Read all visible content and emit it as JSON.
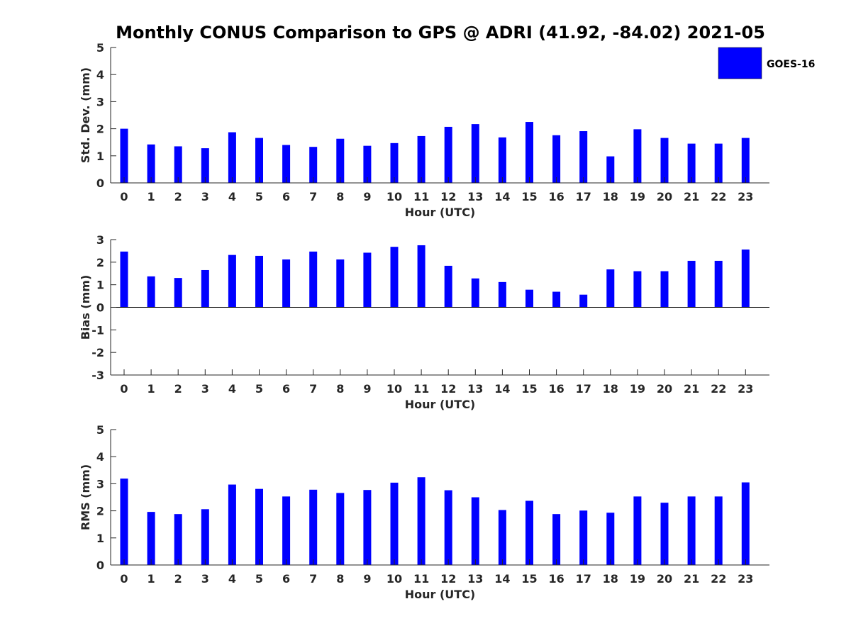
{
  "chart_data": {
    "type": "bar",
    "title": "Monthly CONUS Comparison to GPS @ ADRI (41.92, -84.02) 2021-05",
    "legend": {
      "label": "GOES-16",
      "color": "#0000ff",
      "placement": "top-right"
    },
    "categories": [
      "0",
      "1",
      "2",
      "3",
      "4",
      "5",
      "6",
      "7",
      "8",
      "9",
      "10",
      "11",
      "12",
      "13",
      "14",
      "15",
      "16",
      "17",
      "18",
      "19",
      "20",
      "21",
      "22",
      "23"
    ],
    "panels": [
      {
        "name": "std-dev",
        "ylabel": "Std. Dev. (mm)",
        "xlabel": "Hour (UTC)",
        "ylim": [
          0,
          5
        ],
        "yticks": [
          "0",
          "1",
          "2",
          "3",
          "4",
          "5"
        ],
        "series": [
          {
            "name": "GOES-16",
            "values": [
              2.0,
              1.42,
              1.35,
              1.28,
              1.87,
              1.66,
              1.4,
              1.33,
              1.63,
              1.37,
              1.47,
              1.73,
              2.07,
              2.17,
              1.68,
              2.25,
              1.76,
              1.91,
              0.98,
              1.98,
              1.66,
              1.45,
              1.45,
              1.66
            ]
          }
        ]
      },
      {
        "name": "bias",
        "ylabel": "Bias (mm)",
        "xlabel": "Hour (UTC)",
        "ylim": [
          -3,
          3
        ],
        "yticks": [
          "-3",
          "-2",
          "-1",
          "0",
          "1",
          "2",
          "3"
        ],
        "series": [
          {
            "name": "GOES-16",
            "values": [
              2.47,
              1.37,
              1.3,
              1.65,
              2.32,
              2.28,
              2.12,
              2.47,
              2.12,
              2.42,
              2.68,
              2.75,
              1.84,
              1.28,
              1.12,
              0.78,
              0.69,
              0.56,
              1.68,
              1.6,
              1.6,
              2.06,
              2.06,
              2.56
            ]
          }
        ]
      },
      {
        "name": "rms",
        "ylabel": "RMS (mm)",
        "xlabel": "Hour (UTC)",
        "ylim": [
          0,
          5
        ],
        "yticks": [
          "0",
          "1",
          "2",
          "3",
          "4",
          "5"
        ],
        "series": [
          {
            "name": "GOES-16",
            "values": [
              3.19,
              1.96,
              1.88,
              2.06,
              2.97,
              2.81,
              2.53,
              2.78,
              2.66,
              2.77,
              3.04,
              3.24,
              2.76,
              2.5,
              2.03,
              2.37,
              1.88,
              2.01,
              1.93,
              2.53,
              2.3,
              2.53,
              2.53,
              3.05
            ]
          }
        ]
      }
    ]
  }
}
